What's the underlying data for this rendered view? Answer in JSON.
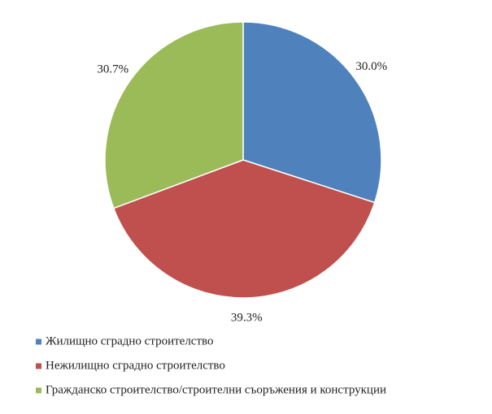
{
  "chart_data": {
    "type": "pie",
    "categories": [
      "Жилищно сградно строителство",
      "Нежилищно сградно строителство",
      "Гражданско строителство/строителни съоръжения и конструкции"
    ],
    "values": [
      30.0,
      39.3,
      30.7
    ],
    "value_labels": [
      "30.0%",
      "39.3%",
      "30.7%"
    ],
    "colors": [
      "#4f81bd",
      "#c0504d",
      "#9bbb59"
    ],
    "legend": "bottom"
  }
}
